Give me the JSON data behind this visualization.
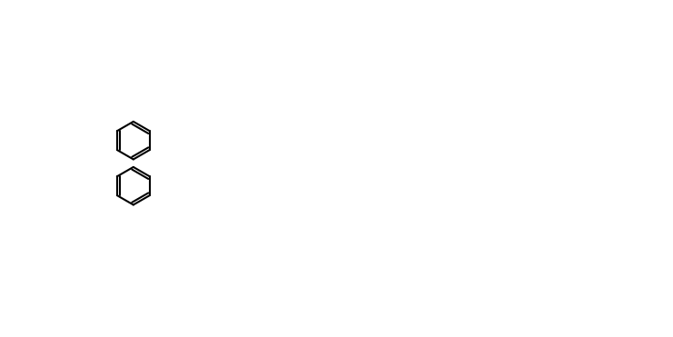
{
  "background_color": "#ffffff",
  "line_color": "#000000",
  "line_width": 1.5,
  "font_size": 9,
  "fig_width": 7.41,
  "fig_height": 3.71,
  "dpi": 100
}
